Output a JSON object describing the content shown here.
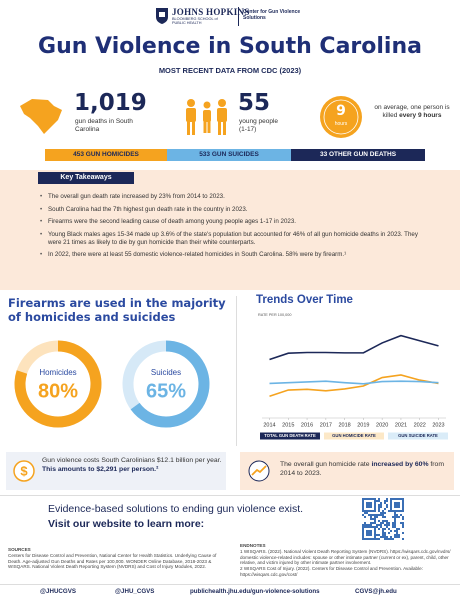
{
  "header": {
    "org": "JOHNS HOPKINS",
    "org_sub": "BLOOMBERG SCHOOL of PUBLIC HEALTH",
    "center": "Center for Gun Violence Solutions"
  },
  "title": "Gun Violence in South Carolina",
  "subtitle": "MOST RECENT DATA FROM CDC (2023)",
  "stats": {
    "deaths": {
      "value": "1,019",
      "label": "gun deaths in South Carolina"
    },
    "youth": {
      "value": "55",
      "label": "young people (1-17)"
    },
    "clock": {
      "value": "9",
      "unit": "hours",
      "text": "on average, one person is killed",
      "bold": "every 9 hours"
    }
  },
  "breakdown": [
    "453 GUN HOMICIDES",
    "533 GUN SUICIDES",
    "33 OTHER GUN DEATHS"
  ],
  "takeaways": {
    "heading": "Key Takeaways",
    "items": [
      "The overall gun death rate increased by 23% from 2014 to 2023.",
      "South Carolina had the 7th highest gun death rate in the country in 2023.",
      "Firearms were the second leading cause of death among young people ages 1-17 in 2023.",
      "Young Black males ages 15-34 made up 3.6% of the state's population but accounted for 46% of all gun homicide deaths in 2023. They were 21 times as likely to die by gun homicide than their white counterparts.",
      "In 2022, there were at least 55 domestic violence-related homicides in South Carolina. 58% were by firearm.¹"
    ]
  },
  "firearms_heading": "Firearms are used in the majority of homicides and suicides",
  "chart_data": [
    {
      "type": "donut",
      "label": "Homicides",
      "values": [
        80
      ],
      "value_labels": [
        "80%"
      ],
      "color": "#f5a31f",
      "track_color": "#fde3bd"
    },
    {
      "type": "donut",
      "label": "Suicides",
      "values": [
        65
      ],
      "value_labels": [
        "65%"
      ],
      "color": "#6cb4e4",
      "track_color": "#d6e9f7"
    },
    {
      "type": "line",
      "title": "Trends Over Time",
      "ylabel": "RATE PER 100,000",
      "x": [
        2014,
        2015,
        2016,
        2017,
        2018,
        2019,
        2020,
        2021,
        2022,
        2023
      ],
      "xlim": [
        2013.6,
        2023.4
      ],
      "xticks": [
        2014,
        2015,
        2016,
        2017,
        2018,
        2019,
        2020,
        2021,
        2022,
        2023
      ],
      "ylim": [
        0,
        25
      ],
      "series": [
        {
          "name": "TOTAL GUN DEATH RATE",
          "color": "#1c2858",
          "values": [
            15.9,
            17.6,
            17.8,
            17.8,
            17.7,
            17.7,
            20.4,
            22.4,
            21.0,
            19.6
          ]
        },
        {
          "name": "GUN HOMICIDE RATE",
          "color": "#f5a31f",
          "values": [
            5.9,
            7.6,
            7.8,
            7.4,
            7.9,
            8.7,
            11.0,
            11.7,
            10.3,
            9.4
          ]
        },
        {
          "name": "GUN SUICIDE RATE",
          "color": "#6cb4e4",
          "values": [
            9.4,
            9.6,
            9.8,
            10.0,
            9.6,
            9.3,
            9.9,
            10.0,
            9.9,
            9.6
          ]
        }
      ]
    }
  ],
  "cost": {
    "text": "Gun violence costs South Carolinians $12.1 billion per year. ",
    "bold": "This amounts to $2,291 per person.²"
  },
  "increase": {
    "text": "The overall gun homicide rate ",
    "bold": "increased by 60%",
    "tail": " from 2014 to 2023."
  },
  "cta": {
    "line1": "Evidence-based solutions to ending gun violence exist.",
    "line2": "Visit our website to learn more:"
  },
  "sources": {
    "heading": "SOURCES",
    "text": "Centers for Disease Control and Prevention, National Center for Health Statistics. Underlying Cause of Death. Age-adjusted Gun Deaths and Rates per 100,000. WONDER Online Database, 2018-2023 & WISQARS. National Violent Death Reporting System (NVDRS) and Cost of Injury Modules, 2022."
  },
  "endnotes": {
    "heading": "ENDNOTES",
    "items": [
      "1 WISQARS. (2022). National Violent Death Reporting System (NVDRS). https://wisqars.cdc.gov/nvdrs/ domestic violence-related includes: spouse or other intimate partner (current or ex), parent, child, other relative, and victim injured by other intimate partner involvement.",
      "2 WISQARS Cost of Injury. (2022). Centers for Disease Control and Prevention. Available: https://wisqars.cdc.gov/cost/"
    ]
  },
  "footer": [
    "@JHUCGVS",
    "@JHU_CGVS",
    "publichealth.jhu.edu/gun-violence-solutions",
    "CGVS@jh.edu"
  ]
}
